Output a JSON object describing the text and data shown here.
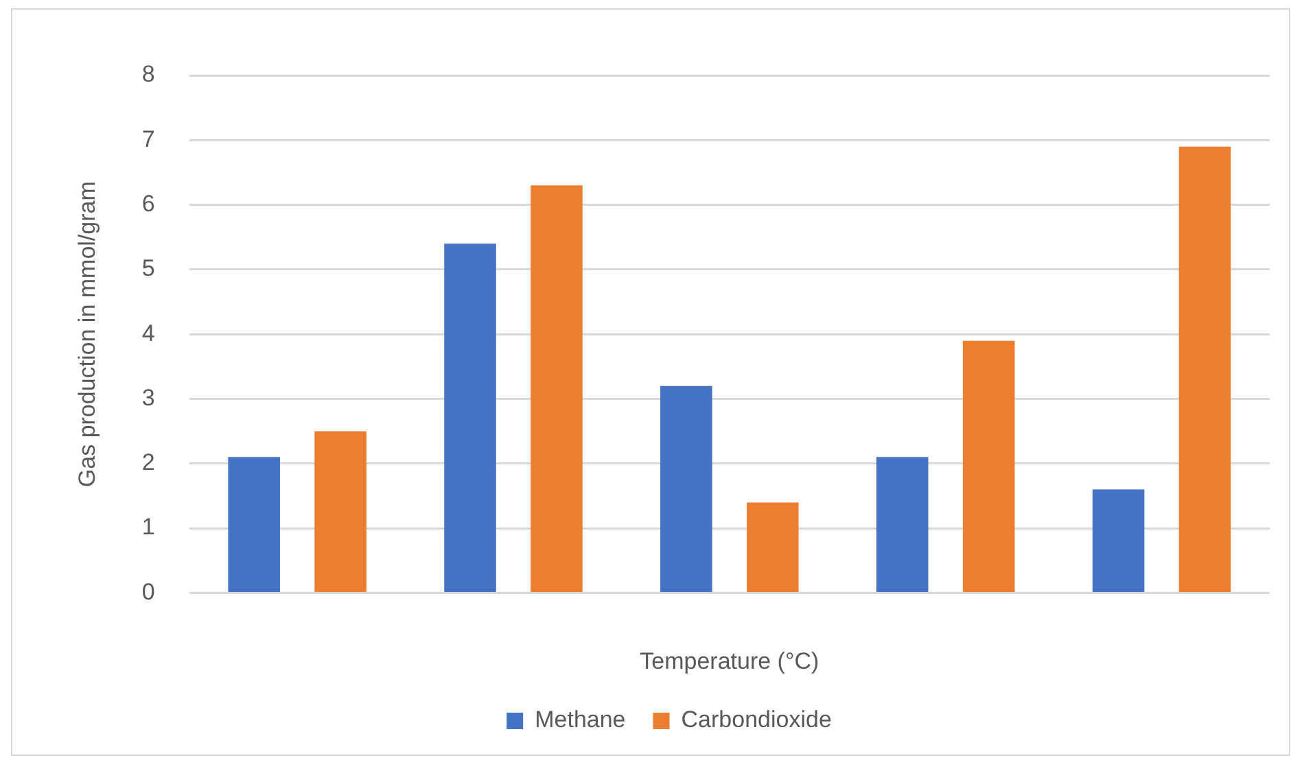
{
  "chart_data": {
    "type": "bar",
    "xlabel": "Temperature (°C)",
    "ylabel": "Gas production in mmol/gram",
    "categories": [
      null,
      null,
      null,
      null,
      null
    ],
    "series": [
      {
        "name": "Methane",
        "color": "#4472c4",
        "values": [
          2.1,
          5.4,
          3.2,
          2.1,
          1.6
        ]
      },
      {
        "name": "Carbondioxide",
        "color": "#ed7d31",
        "values": [
          2.5,
          6.3,
          1.4,
          3.9,
          6.9
        ]
      }
    ],
    "ylim": [
      0,
      8
    ],
    "yticks": [
      0,
      1,
      2,
      3,
      4,
      5,
      6,
      7,
      8
    ],
    "grid": "y",
    "legend": "bottom"
  }
}
